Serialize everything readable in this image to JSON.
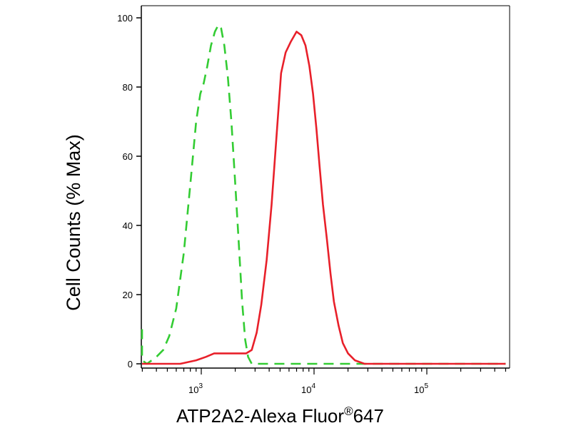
{
  "chart_data": {
    "type": "line",
    "xlabel": "ATP2A2-Alexa Fluor",
    "xlabel_sup": "®",
    "xlabel_suffix": "647",
    "ylabel": "Cell Counts (% Max)",
    "x_scale": "log",
    "xlim": [
      250,
      500000
    ],
    "ylim": [
      0,
      100
    ],
    "y_ticks": [
      {
        "value": 0,
        "label": "0"
      },
      {
        "value": 20,
        "label": "20"
      },
      {
        "value": 40,
        "label": "40"
      },
      {
        "value": 60,
        "label": "60"
      },
      {
        "value": 80,
        "label": "80"
      },
      {
        "value": 100,
        "label": "100"
      }
    ],
    "x_ticks": [
      {
        "value": 1000,
        "base": "10",
        "exp": "3"
      },
      {
        "value": 10000,
        "base": "10",
        "exp": "4"
      },
      {
        "value": 100000,
        "base": "10",
        "exp": "5"
      }
    ],
    "grid": false,
    "legend": "none",
    "series": [
      {
        "color": "#33cc33",
        "dash": "dashed",
        "points": [
          [
            250,
            10
          ],
          [
            265,
            2
          ],
          [
            285,
            1
          ],
          [
            330,
            0
          ],
          [
            400,
            2
          ],
          [
            460,
            4
          ],
          [
            520,
            8
          ],
          [
            600,
            16
          ],
          [
            700,
            32
          ],
          [
            800,
            52
          ],
          [
            900,
            70
          ],
          [
            980,
            78
          ],
          [
            1050,
            81
          ],
          [
            1130,
            86
          ],
          [
            1220,
            92
          ],
          [
            1320,
            96
          ],
          [
            1420,
            98
          ],
          [
            1500,
            97
          ],
          [
            1600,
            92
          ],
          [
            1720,
            83
          ],
          [
            1850,
            70
          ],
          [
            2000,
            52
          ],
          [
            2150,
            35
          ],
          [
            2300,
            18
          ],
          [
            2450,
            7
          ],
          [
            2600,
            2
          ],
          [
            2800,
            0
          ],
          [
            3200,
            0
          ],
          [
            500000,
            0
          ]
        ]
      },
      {
        "color": "#e8202a",
        "dash": "solid",
        "points": [
          [
            250,
            0
          ],
          [
            650,
            0
          ],
          [
            900,
            1
          ],
          [
            1100,
            2
          ],
          [
            1300,
            3
          ],
          [
            1500,
            3
          ],
          [
            1800,
            3
          ],
          [
            2100,
            3
          ],
          [
            2500,
            3
          ],
          [
            2800,
            4
          ],
          [
            3100,
            9
          ],
          [
            3400,
            17
          ],
          [
            3800,
            30
          ],
          [
            4200,
            46
          ],
          [
            4700,
            68
          ],
          [
            5100,
            84
          ],
          [
            5600,
            90
          ],
          [
            6200,
            93
          ],
          [
            7000,
            96
          ],
          [
            7700,
            95
          ],
          [
            8400,
            92
          ],
          [
            9100,
            86
          ],
          [
            9800,
            78
          ],
          [
            10500,
            68
          ],
          [
            11200,
            57
          ],
          [
            12000,
            46
          ],
          [
            13000,
            36
          ],
          [
            14000,
            26
          ],
          [
            15000,
            18
          ],
          [
            16500,
            11
          ],
          [
            18000,
            6
          ],
          [
            20000,
            3
          ],
          [
            23000,
            1
          ],
          [
            28000,
            0
          ],
          [
            500000,
            0
          ]
        ]
      }
    ]
  }
}
